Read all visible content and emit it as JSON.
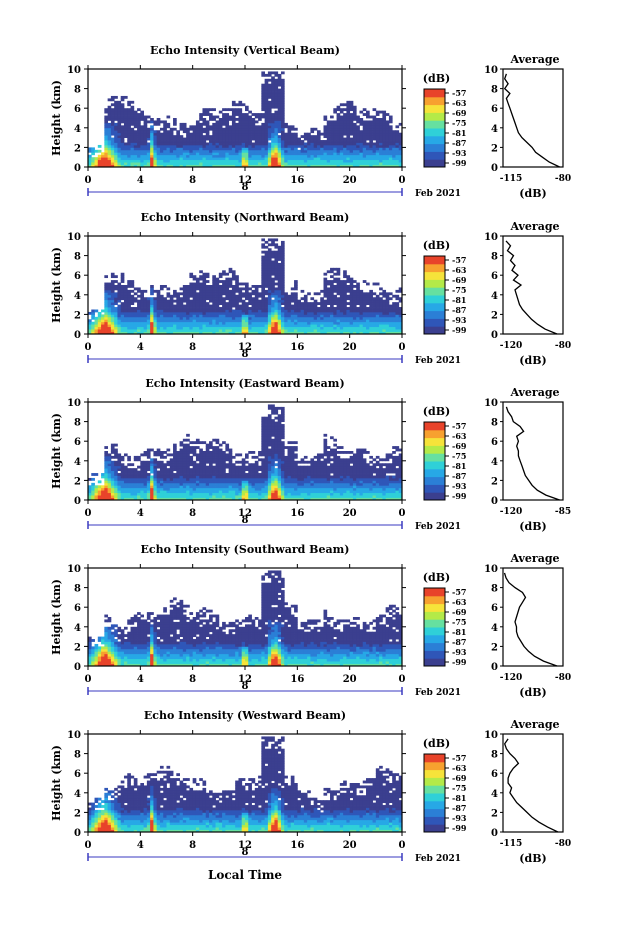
{
  "xlabel_bottom": "Local Time",
  "colors": {
    "background_blue": "#3b3f8f",
    "colormap": [
      "#3b3f8f",
      "#2f56b8",
      "#2b7fd6",
      "#27a8e6",
      "#2fd0d8",
      "#66e0a0",
      "#b4ea48",
      "#f6e33a",
      "#f7a12f",
      "#e8432a"
    ]
  },
  "chart_data": [
    {
      "type": "heatmap",
      "title": "Echo Intensity (Vertical Beam)",
      "ylabel": "Height (km)",
      "ylim": [
        0,
        10
      ],
      "xlim": [
        0,
        24
      ],
      "x_ticks": [
        "0",
        "4",
        "8",
        "12",
        "16",
        "20",
        "0"
      ],
      "y_ticks": [
        "0",
        "2",
        "4",
        "6",
        "8",
        "10"
      ],
      "date_label": "8",
      "month_label": "Feb 2021",
      "colorbar": {
        "unit": "(dB)",
        "ticks": [
          "-57",
          "-63",
          "-69",
          "-75",
          "-81",
          "-87",
          "-93",
          "-99"
        ]
      },
      "profile": {
        "title": "Average",
        "xlabel": "(dB)",
        "x_ticks": [
          "-115",
          "-80"
        ],
        "y_ticks": [
          "0",
          "2",
          "4",
          "6",
          "8",
          "10"
        ],
        "xlim": [
          -115,
          -80
        ],
        "heights": [
          0,
          0.5,
          1,
          1.5,
          2,
          2.5,
          3,
          3.5,
          4,
          4.5,
          5,
          5.5,
          6,
          6.5,
          7,
          7.5,
          8,
          8.5,
          9,
          9.5
        ],
        "values": [
          -82,
          -88,
          -92,
          -96,
          -98,
          -101,
          -104,
          -106,
          -107,
          -108,
          -109,
          -110,
          -111,
          -112,
          -113,
          -111,
          -114,
          -112,
          -114,
          -113
        ]
      }
    },
    {
      "type": "heatmap",
      "title": "Echo Intensity (Northward Beam)",
      "ylabel": "Height (km)",
      "ylim": [
        0,
        10
      ],
      "xlim": [
        0,
        24
      ],
      "x_ticks": [
        "0",
        "4",
        "8",
        "12",
        "16",
        "20",
        "0"
      ],
      "y_ticks": [
        "0",
        "2",
        "4",
        "6",
        "8",
        "10"
      ],
      "date_label": "8",
      "month_label": "Feb 2021",
      "colorbar": {
        "unit": "(dB)",
        "ticks": [
          "-57",
          "-63",
          "-69",
          "-75",
          "-81",
          "-87",
          "-93",
          "-99"
        ]
      },
      "profile": {
        "title": "Average",
        "xlabel": "(dB)",
        "x_ticks": [
          "-120",
          "-80"
        ],
        "y_ticks": [
          "0",
          "2",
          "4",
          "6",
          "8",
          "10"
        ],
        "xlim": [
          -120,
          -80
        ],
        "heights": [
          0,
          0.5,
          1,
          1.5,
          2,
          2.5,
          3,
          3.5,
          4,
          4.5,
          5,
          5.5,
          6,
          6.5,
          7,
          7.5,
          8,
          8.5,
          9,
          9.5
        ],
        "values": [
          -84,
          -92,
          -97,
          -101,
          -104,
          -107,
          -109,
          -110,
          -111,
          -112,
          -108,
          -113,
          -110,
          -114,
          -112,
          -115,
          -113,
          -117,
          -115,
          -118
        ]
      }
    },
    {
      "type": "heatmap",
      "title": "Echo Intensity (Eastward Beam)",
      "ylabel": "Height (km)",
      "ylim": [
        0,
        10
      ],
      "xlim": [
        0,
        24
      ],
      "x_ticks": [
        "0",
        "4",
        "8",
        "12",
        "16",
        "20",
        "0"
      ],
      "y_ticks": [
        "0",
        "2",
        "4",
        "6",
        "8",
        "10"
      ],
      "date_label": "8",
      "month_label": "Feb 2021",
      "colorbar": {
        "unit": "(dB)",
        "ticks": [
          "-57",
          "-63",
          "-69",
          "-75",
          "-81",
          "-87",
          "-93",
          "-99"
        ]
      },
      "profile": {
        "title": "Average",
        "xlabel": "(dB)",
        "x_ticks": [
          "-120",
          "-85"
        ],
        "y_ticks": [
          "0",
          "2",
          "4",
          "6",
          "8",
          "10"
        ],
        "xlim": [
          -120,
          -85
        ],
        "heights": [
          0,
          0.5,
          1,
          1.5,
          2,
          2.5,
          3,
          3.5,
          4,
          4.5,
          5,
          5.5,
          6,
          6.5,
          7,
          7.5,
          8,
          8.5,
          9,
          9.5
        ],
        "values": [
          -87,
          -95,
          -100,
          -103,
          -105,
          -107,
          -108,
          -109,
          -110,
          -111,
          -111,
          -112,
          -111,
          -112,
          -108,
          -110,
          -114,
          -115,
          -117,
          -118
        ]
      }
    },
    {
      "type": "heatmap",
      "title": "Echo Intensity (Southward Beam)",
      "ylabel": "Height (km)",
      "ylim": [
        0,
        10
      ],
      "xlim": [
        0,
        24
      ],
      "x_ticks": [
        "0",
        "4",
        "8",
        "12",
        "16",
        "20",
        "0"
      ],
      "y_ticks": [
        "0",
        "2",
        "4",
        "6",
        "8",
        "10"
      ],
      "date_label": "8",
      "month_label": "Feb 2021",
      "colorbar": {
        "unit": "(dB)",
        "ticks": [
          "-57",
          "-63",
          "-69",
          "-75",
          "-81",
          "-87",
          "-93",
          "-99"
        ]
      },
      "profile": {
        "title": "Average",
        "xlabel": "(dB)",
        "x_ticks": [
          "-120",
          "-80"
        ],
        "y_ticks": [
          "0",
          "2",
          "4",
          "6",
          "8",
          "10"
        ],
        "xlim": [
          -120,
          -80
        ],
        "heights": [
          0,
          0.5,
          1,
          1.5,
          2,
          2.5,
          3,
          3.5,
          4,
          4.5,
          5,
          5.5,
          6,
          6.5,
          7,
          7.5,
          8,
          8.5,
          9,
          9.5
        ],
        "values": [
          -84,
          -93,
          -99,
          -103,
          -106,
          -108,
          -110,
          -111,
          -111,
          -112,
          -111,
          -110,
          -109,
          -107,
          -105,
          -107,
          -112,
          -116,
          -118,
          -119
        ]
      }
    },
    {
      "type": "heatmap",
      "title": "Echo Intensity (Westward Beam)",
      "ylabel": "Height (km)",
      "ylim": [
        0,
        10
      ],
      "xlim": [
        0,
        24
      ],
      "x_ticks": [
        "0",
        "4",
        "8",
        "12",
        "16",
        "20",
        "0"
      ],
      "y_ticks": [
        "0",
        "2",
        "4",
        "6",
        "8",
        "10"
      ],
      "date_label": "8",
      "month_label": "Feb 2021",
      "colorbar": {
        "unit": "(dB)",
        "ticks": [
          "-57",
          "-63",
          "-69",
          "-75",
          "-81",
          "-87",
          "-93",
          "-99"
        ]
      },
      "profile": {
        "title": "Average",
        "xlabel": "(dB)",
        "x_ticks": [
          "-115",
          "-80"
        ],
        "y_ticks": [
          "0",
          "2",
          "4",
          "6",
          "8",
          "10"
        ],
        "xlim": [
          -115,
          -80
        ],
        "heights": [
          0,
          0.5,
          1,
          1.5,
          2,
          2.5,
          3,
          3.5,
          4,
          4.5,
          5,
          5.5,
          6,
          6.5,
          7,
          7.5,
          8,
          8.5,
          9,
          9.5
        ],
        "values": [
          -83,
          -89,
          -94,
          -98,
          -101,
          -104,
          -107,
          -109,
          -111,
          -110,
          -112,
          -112,
          -111,
          -109,
          -106,
          -108,
          -111,
          -113,
          -114,
          -112
        ]
      }
    }
  ]
}
